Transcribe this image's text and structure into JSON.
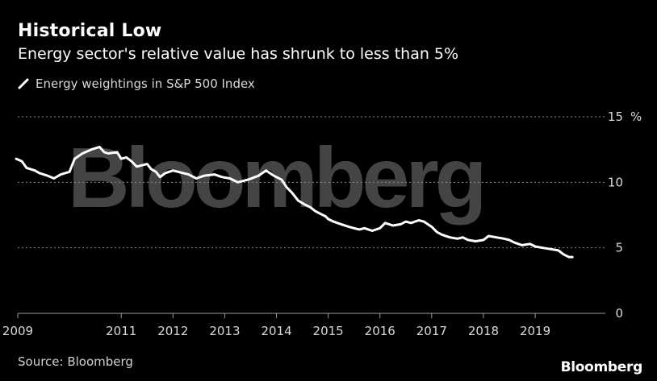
{
  "header": {
    "title": "Historical Low",
    "subtitle": "Energy sector's relative value has shrunk to less than 5%"
  },
  "watermark": "Bloomberg",
  "footer": {
    "source": "Source: Bloomberg",
    "brand": "Bloomberg"
  },
  "chart_data": {
    "type": "line",
    "title": "Historical Low",
    "subtitle": "Energy sector's relative value has shrunk to less than 5%",
    "xlabel": "",
    "ylabel": "",
    "y_unit": "%",
    "xlim": [
      2009,
      2020.2
    ],
    "ylim": [
      0,
      15
    ],
    "x_ticks": [
      "2009",
      "2011",
      "2012",
      "2013",
      "2014",
      "2015",
      "2016",
      "2017",
      "2018",
      "2019"
    ],
    "y_ticks": [
      "0",
      "5",
      "10",
      "15"
    ],
    "grid": true,
    "legend_position": "top-left",
    "series": [
      {
        "name": "Energy weightings in S&P 500 Index",
        "color": "#ffffff",
        "x": [
          2008.97,
          2009.08,
          2009.17,
          2009.33,
          2009.42,
          2009.58,
          2009.7,
          2009.83,
          2010.0,
          2010.1,
          2010.25,
          2010.42,
          2010.58,
          2010.67,
          2010.75,
          2010.92,
          2011.0,
          2011.1,
          2011.2,
          2011.3,
          2011.4,
          2011.5,
          2011.58,
          2011.67,
          2011.75,
          2011.85,
          2012.0,
          2012.1,
          2012.2,
          2012.3,
          2012.45,
          2012.6,
          2012.8,
          2012.95,
          2013.1,
          2013.25,
          2013.45,
          2013.65,
          2013.8,
          2013.95,
          2014.1,
          2014.2,
          2014.3,
          2014.42,
          2014.55,
          2014.65,
          2014.75,
          2014.85,
          2014.95,
          2015.0,
          2015.1,
          2015.25,
          2015.4,
          2015.5,
          2015.6,
          2015.7,
          2015.85,
          2016.0,
          2016.1,
          2016.25,
          2016.4,
          2016.5,
          2016.6,
          2016.75,
          2016.85,
          2017.0,
          2017.1,
          2017.2,
          2017.35,
          2017.5,
          2017.6,
          2017.7,
          2017.85,
          2018.0,
          2018.1,
          2018.25,
          2018.4,
          2018.5,
          2018.6,
          2018.75,
          2018.9,
          2019.0,
          2019.15,
          2019.3,
          2019.45,
          2019.55,
          2019.65,
          2019.72
        ],
        "y": [
          11.8,
          11.6,
          11.1,
          10.9,
          10.7,
          10.5,
          10.3,
          10.6,
          10.8,
          11.8,
          12.2,
          12.5,
          12.7,
          12.3,
          12.2,
          12.3,
          11.8,
          11.9,
          11.6,
          11.2,
          11.3,
          11.4,
          11.0,
          10.8,
          10.4,
          10.7,
          10.9,
          10.8,
          10.7,
          10.6,
          10.3,
          10.5,
          10.6,
          10.4,
          10.3,
          10.0,
          10.2,
          10.5,
          10.9,
          10.5,
          10.2,
          9.6,
          9.2,
          8.6,
          8.3,
          8.1,
          7.8,
          7.6,
          7.4,
          7.2,
          7.0,
          6.8,
          6.6,
          6.5,
          6.4,
          6.5,
          6.3,
          6.5,
          6.9,
          6.7,
          6.8,
          7.0,
          6.9,
          7.1,
          7.0,
          6.6,
          6.2,
          6.0,
          5.8,
          5.7,
          5.8,
          5.6,
          5.5,
          5.6,
          5.9,
          5.8,
          5.7,
          5.6,
          5.4,
          5.2,
          5.3,
          5.1,
          5.0,
          4.9,
          4.8,
          4.5,
          4.3,
          4.3
        ]
      }
    ]
  }
}
